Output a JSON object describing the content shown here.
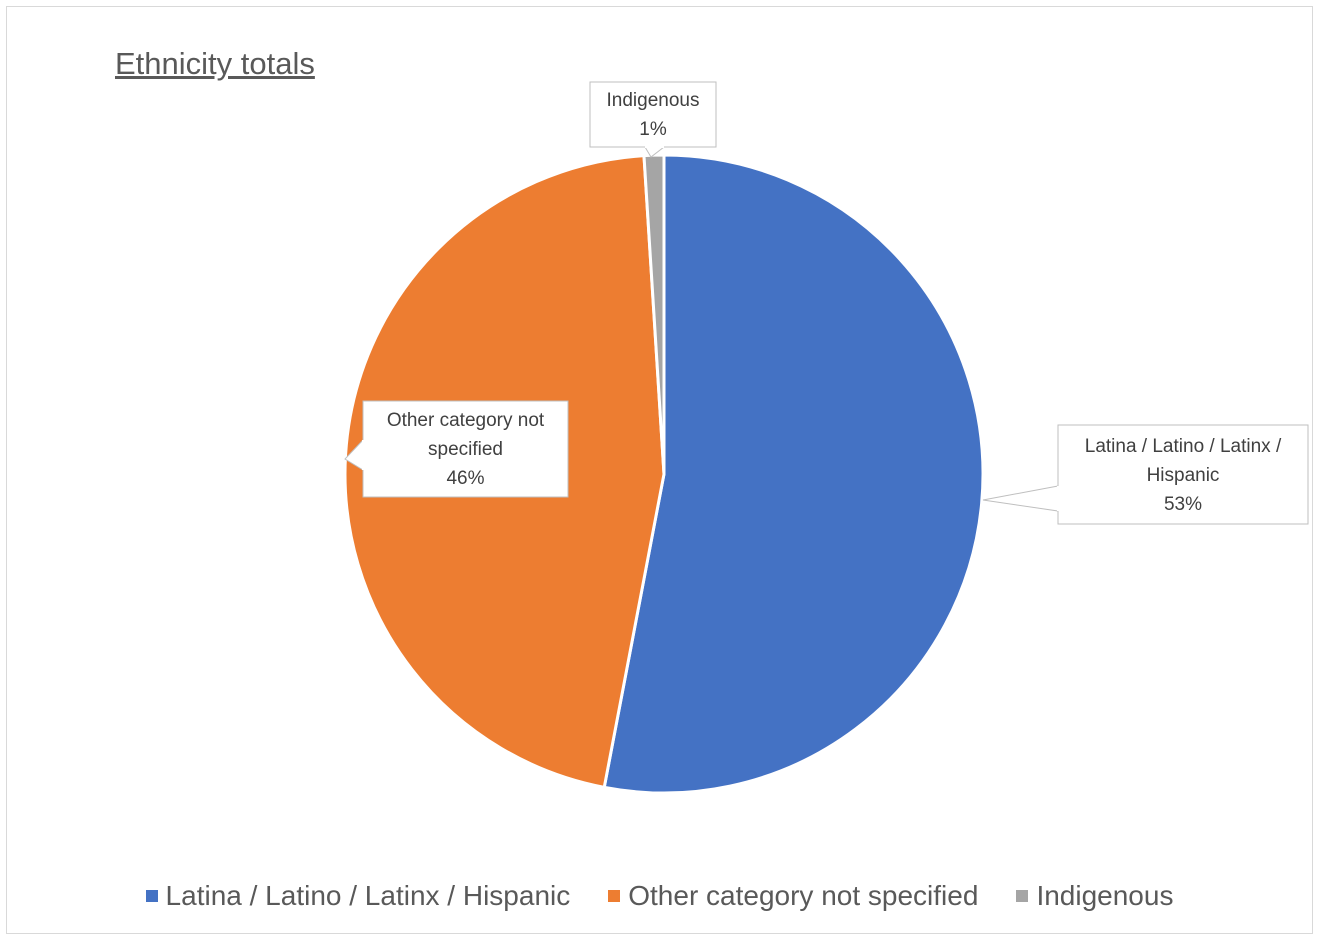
{
  "chart_data": {
    "type": "pie",
    "title": "Ethnicity totals",
    "slices": [
      {
        "label": "Latina / Latino / Latinx / Hispanic",
        "percent": 53,
        "value": 0.53,
        "color": "#4472C4"
      },
      {
        "label": "Other category not specified",
        "percent": 46,
        "value": 0.46,
        "color": "#ED7D31"
      },
      {
        "label": "Indigenous",
        "percent": 1,
        "value": 0.01,
        "color": "#A5A5A5"
      }
    ],
    "data_labels": [
      {
        "lines": [
          "Latina / Latino / Latinx /",
          "Hispanic",
          "53%"
        ]
      },
      {
        "lines": [
          "Other category not",
          "specified",
          "46%"
        ]
      },
      {
        "lines": [
          "Indigenous",
          "1%"
        ]
      }
    ],
    "legend": {
      "position": "bottom",
      "entries": [
        "Latina / Latino / Latinx / Hispanic",
        "Other category not specified",
        "Indigenous"
      ]
    }
  }
}
